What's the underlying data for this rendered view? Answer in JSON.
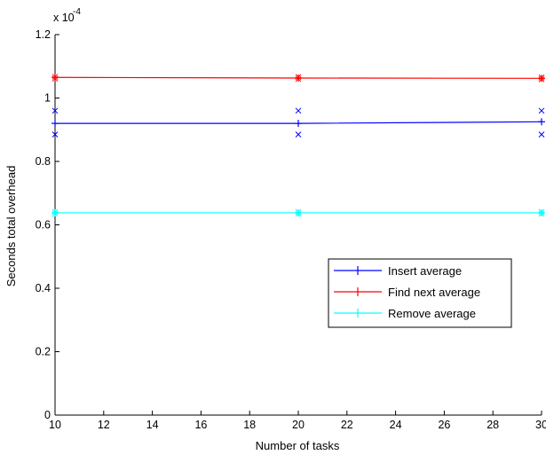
{
  "chart_data": {
    "type": "line",
    "title": "",
    "xlabel": "Number of tasks",
    "ylabel": "Seconds total overhead",
    "scale_factor_label": {
      "base": "x 10",
      "exponent": "-4"
    },
    "xlim": [
      10,
      30
    ],
    "ylim": [
      0,
      1.2
    ],
    "xticks": [
      "10",
      "12",
      "14",
      "16",
      "18",
      "20",
      "22",
      "24",
      "26",
      "28",
      "30"
    ],
    "yticks": [
      "0",
      "0.2",
      "0.4",
      "0.6",
      "0.8",
      "1",
      "1.2"
    ],
    "grid": false,
    "legend_position": "lower-right",
    "x": [
      10,
      20,
      30
    ],
    "series": [
      {
        "name": "Insert average",
        "color": "#0000ff",
        "marker": "+",
        "values": [
          0.92,
          0.92,
          0.925
        ],
        "scatter_points": [
          {
            "x": 10,
            "y": 0.96
          },
          {
            "x": 10,
            "y": 0.885
          },
          {
            "x": 20,
            "y": 0.96
          },
          {
            "x": 20,
            "y": 0.885
          },
          {
            "x": 30,
            "y": 0.96
          },
          {
            "x": 30,
            "y": 0.885
          }
        ]
      },
      {
        "name": "Find next average",
        "color": "#ff0000",
        "marker": "+",
        "values": [
          1.065,
          1.063,
          1.062
        ],
        "scatter_points": [
          {
            "x": 10,
            "y": 1.067
          },
          {
            "x": 10,
            "y": 1.061
          },
          {
            "x": 20,
            "y": 1.066
          },
          {
            "x": 20,
            "y": 1.06
          },
          {
            "x": 30,
            "y": 1.065
          },
          {
            "x": 30,
            "y": 1.059
          }
        ]
      },
      {
        "name": "Remove average",
        "color": "#00ffff",
        "marker": "+",
        "values": [
          0.638,
          0.638,
          0.638
        ],
        "scatter_points": [
          {
            "x": 10,
            "y": 0.641
          },
          {
            "x": 10,
            "y": 0.635
          },
          {
            "x": 20,
            "y": 0.641
          },
          {
            "x": 20,
            "y": 0.635
          },
          {
            "x": 30,
            "y": 0.641
          },
          {
            "x": 30,
            "y": 0.635
          }
        ]
      }
    ]
  }
}
